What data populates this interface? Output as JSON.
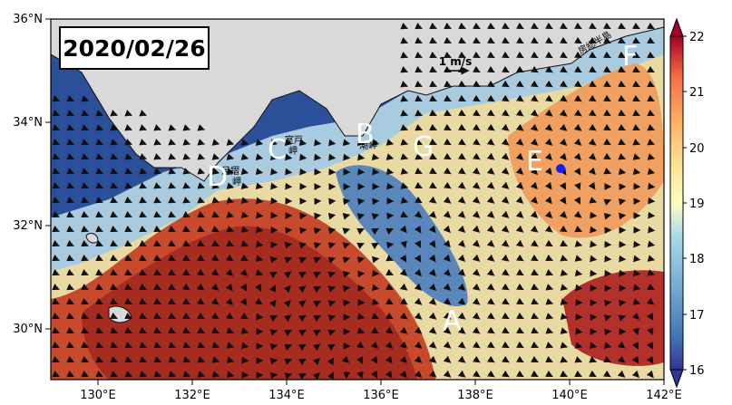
{
  "date_label": "2020/02/26",
  "scale": {
    "label": "1 m/s"
  },
  "axes": {
    "lat_ticks": [
      "36°N",
      "34°N",
      "32°N",
      "30°N"
    ],
    "lon_ticks": [
      "130°E",
      "132°E",
      "134°E",
      "136°E",
      "138°E",
      "140°E",
      "142°E"
    ]
  },
  "colorbar": {
    "ticks": [
      "22",
      "21",
      "20",
      "19",
      "18",
      "17",
      "16"
    ]
  },
  "place_labels": {
    "boso": "房総半島",
    "muroto_1": "室戸",
    "muroto_2": "岬",
    "shionomisaki": "潮岬",
    "ashizuri_1": "足摺",
    "ashizuri_2": "岬"
  },
  "points": [
    "A",
    "B",
    "C",
    "D",
    "E",
    "F",
    "G"
  ],
  "colors": {
    "land": "#d9d9d9",
    "marker": "#1a1aff"
  },
  "chart_data": {
    "type": "heatmap",
    "title": "2020/02/26",
    "x_axis": {
      "unit": "°E",
      "range": [
        129,
        142
      ],
      "ticks": [
        130,
        132,
        134,
        136,
        138,
        140,
        142
      ]
    },
    "y_axis": {
      "unit": "°N",
      "range": [
        29,
        36
      ],
      "ticks": [
        30,
        32,
        34,
        36
      ]
    },
    "colorbar_range": [
      16,
      22
    ],
    "colorbar_ticks": [
      16,
      17,
      18,
      19,
      20,
      21,
      22
    ],
    "colormap": "RdYlBu_r",
    "vector_scale_label": "1 m/s",
    "labeled_points": [
      "A",
      "B",
      "C",
      "D",
      "E",
      "F",
      "G"
    ],
    "marker": "blue dot"
  }
}
